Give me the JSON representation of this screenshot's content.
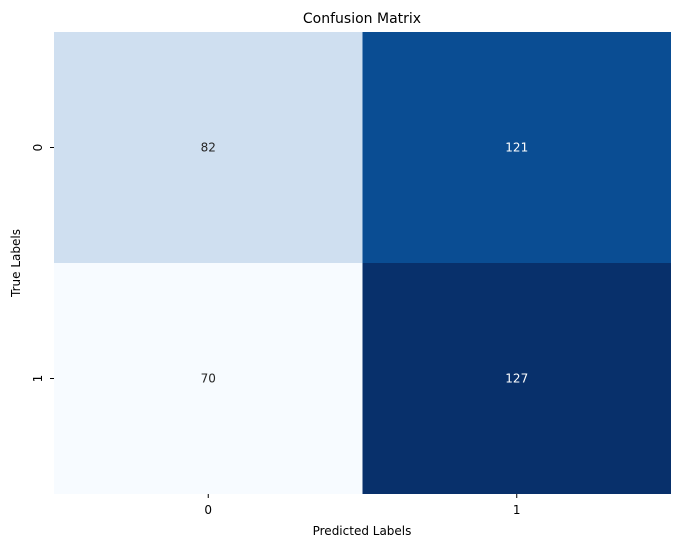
{
  "chart_data": {
    "type": "heatmap",
    "title": "Confusion Matrix",
    "xlabel": "Predicted Labels",
    "ylabel": "True Labels",
    "x_categories": [
      "0",
      "1"
    ],
    "y_categories": [
      "0",
      "1"
    ],
    "values": [
      [
        82,
        121
      ],
      [
        70,
        127
      ]
    ],
    "colormap": "Blues",
    "cell_colors": [
      [
        "#cfdff0",
        "#0a4d93"
      ],
      [
        "#f7fbff",
        "#08306b"
      ]
    ],
    "text_colors": [
      [
        "#262626",
        "#ffffff"
      ],
      [
        "#262626",
        "#ffffff"
      ]
    ],
    "colorbar": false,
    "grid": false
  }
}
